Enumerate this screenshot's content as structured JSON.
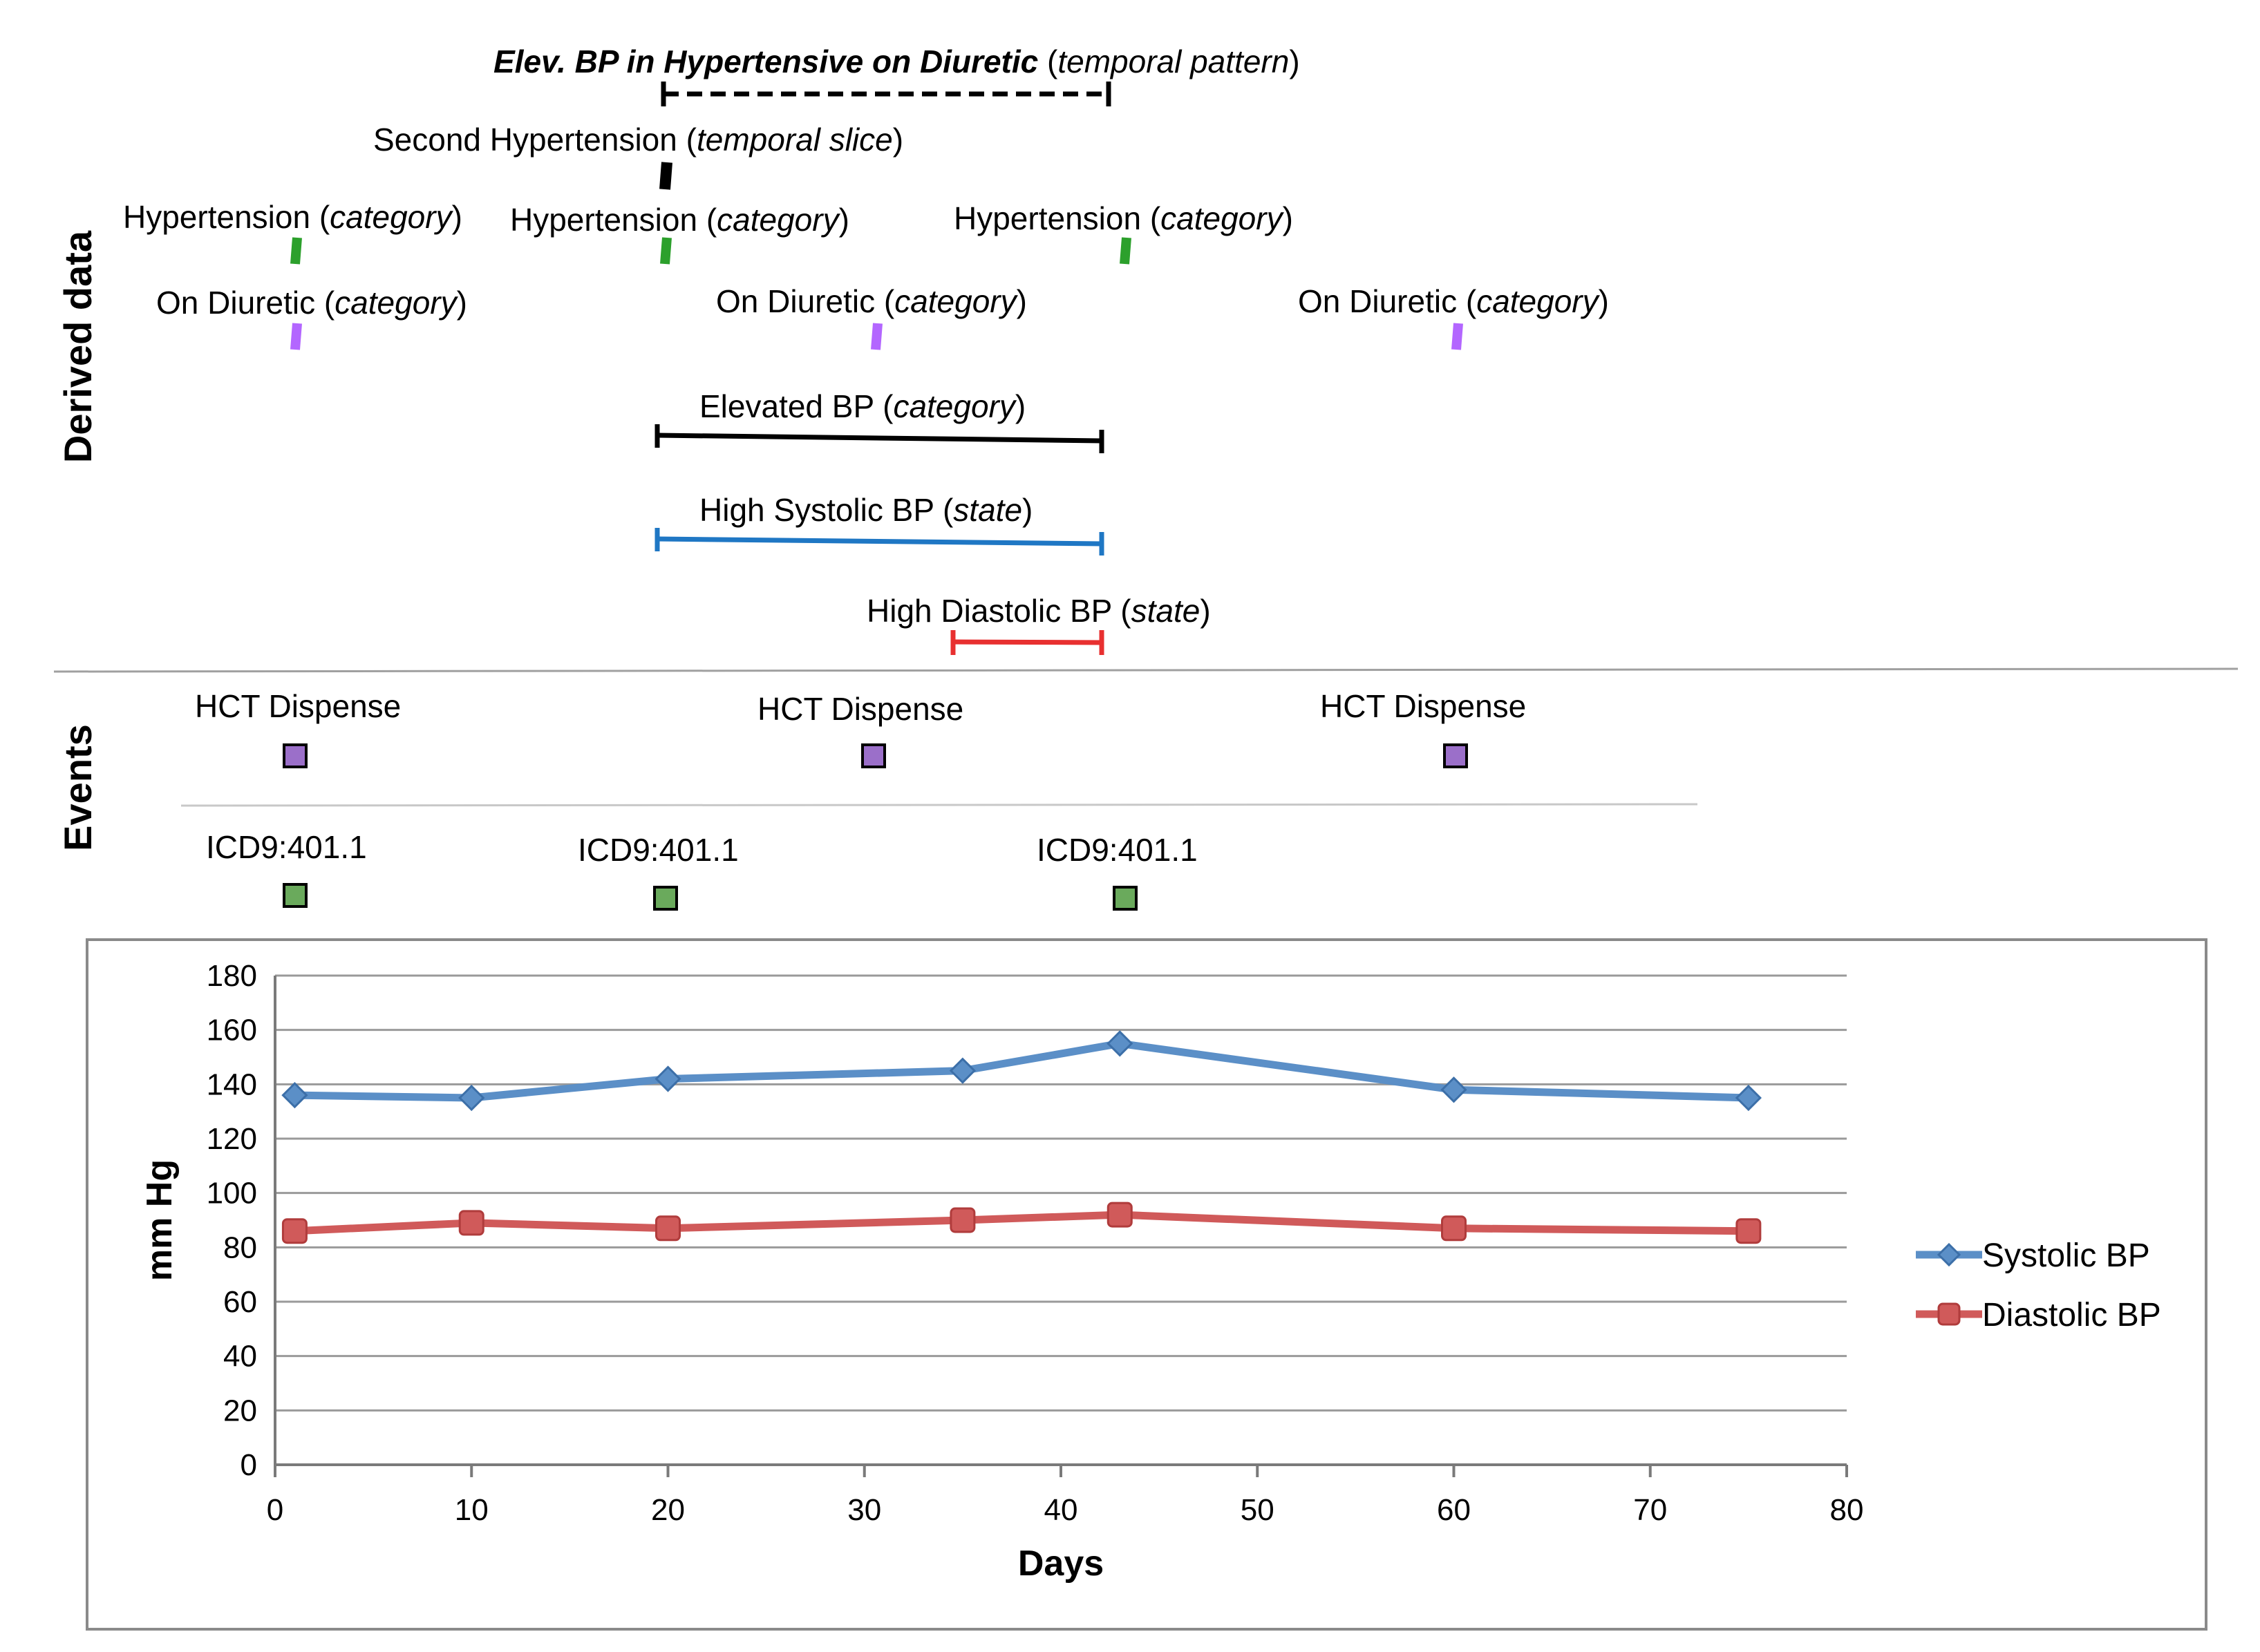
{
  "sections": {
    "derived": "Derived data",
    "events": "Events"
  },
  "derived": {
    "pattern": {
      "name": "Elev. BP in Hypertensive on Diuretic",
      "open": " (",
      "type": "temporal pattern",
      "close": ")"
    },
    "slice": {
      "name": "Second Hypertension",
      "open": " (",
      "type": "temporal slice",
      "close": ")"
    },
    "hypertension": [
      {
        "name": "Hypertension",
        "open": " (",
        "type": "category",
        "close": ")"
      },
      {
        "name": "Hypertension",
        "open": " (",
        "type": "category",
        "close": ")"
      },
      {
        "name": "Hypertension",
        "open": " (",
        "type": "category",
        "close": ")"
      }
    ],
    "diuretic": [
      {
        "name": "On Diuretic",
        "open": " (",
        "type": "category",
        "close": ")"
      },
      {
        "name": "On Diuretic",
        "open": " (",
        "type": "category",
        "close": ")"
      },
      {
        "name": "On Diuretic",
        "open": " (",
        "type": "category",
        "close": ")"
      }
    ],
    "elevated": {
      "name": "Elevated BP",
      "open": " (",
      "type": "category",
      "close": ")"
    },
    "high_systolic": {
      "name": "High Systolic BP",
      "open": " (",
      "type": "state",
      "close": ")"
    },
    "high_diastolic": {
      "name": "High Diastolic BP",
      "open": " (",
      "type": "state",
      "close": ")"
    }
  },
  "events": {
    "dispense": [
      "HCT Dispense",
      "HCT Dispense",
      "HCT Dispense"
    ],
    "diagnosis": [
      "ICD9:401.1",
      "ICD9:401.1",
      "ICD9:401.1"
    ]
  },
  "colors": {
    "hypertension_mark": "#2ca02c",
    "diuretic_mark": "#b366ff",
    "systolic_span": "#1f77c4",
    "diastolic_span": "#e83030",
    "dispense_box": "#9b6fc9",
    "diagnosis_box": "#6aaa5c",
    "systolic_line": "#5b8fc7",
    "diastolic_line": "#d05a5a"
  },
  "chart_data": {
    "type": "line",
    "xlabel": "Days",
    "ylabel": "mm Hg",
    "xlim": [
      0,
      80
    ],
    "ylim": [
      0,
      180
    ],
    "x_ticks": [
      "0",
      "10",
      "20",
      "30",
      "40",
      "50",
      "60",
      "70",
      "80"
    ],
    "y_ticks": [
      "0",
      "20",
      "40",
      "60",
      "80",
      "100",
      "120",
      "140",
      "160",
      "180"
    ],
    "grid": "horizontal",
    "legend": "right",
    "series": [
      {
        "name": "Systolic BP",
        "x": [
          1,
          10,
          20,
          35,
          43,
          60,
          75
        ],
        "y": [
          136,
          135,
          142,
          145,
          155,
          138,
          135
        ]
      },
      {
        "name": "Diastolic BP",
        "x": [
          1,
          10,
          20,
          35,
          43,
          60,
          75
        ],
        "y": [
          86,
          89,
          87,
          90,
          92,
          87,
          86
        ]
      }
    ]
  }
}
